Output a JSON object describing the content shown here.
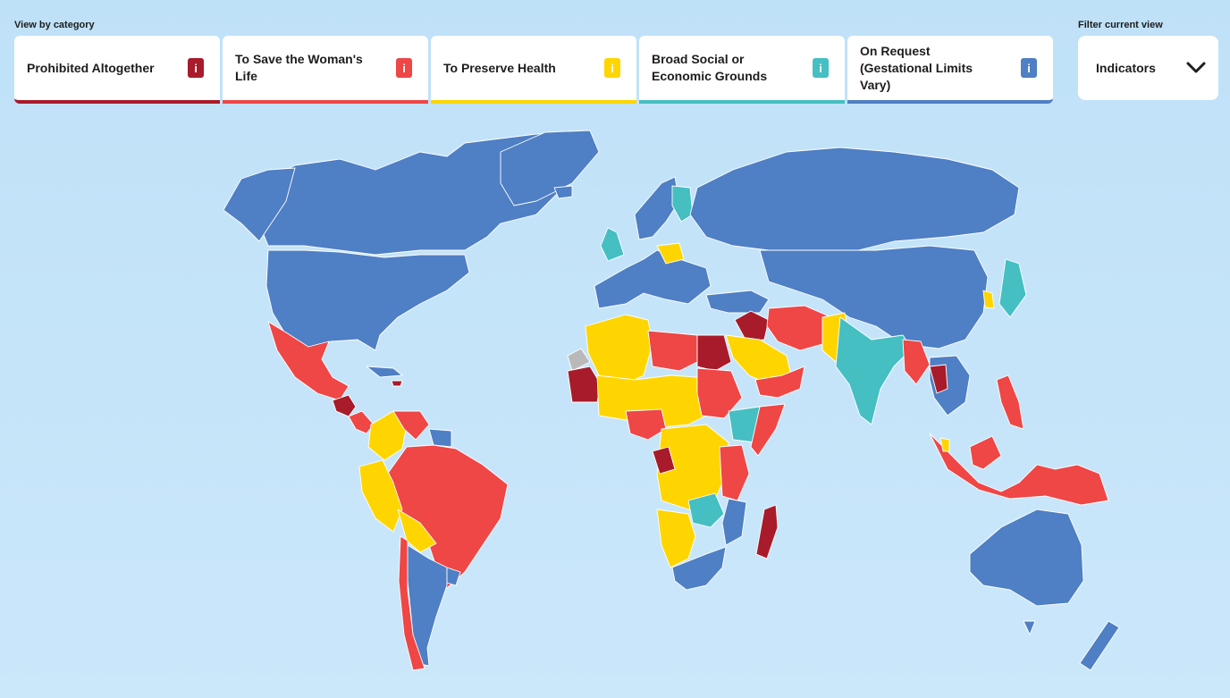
{
  "header": {
    "category_label": "View by category",
    "filter_label": "Filter current view"
  },
  "categories": [
    {
      "label": "Prohibited Altogether",
      "info": "i",
      "color": "#a81b2a"
    },
    {
      "label": "To Save the Woman's Life",
      "info": "i",
      "color": "#ef4646"
    },
    {
      "label": "To Preserve Health",
      "info": "i",
      "color": "#ffd500"
    },
    {
      "label": "Broad Social or Economic Grounds",
      "info": "i",
      "color": "#45bfc2"
    },
    {
      "label": "On Request (Gestational Limits Vary)",
      "info": "i",
      "color": "#4f7fc4"
    }
  ],
  "filter": {
    "selected": "Indicators",
    "icon": "chevron-down-icon"
  },
  "map": {
    "ocean_color": "#c3e3f9",
    "no_data_color": "#b9b9b9"
  }
}
